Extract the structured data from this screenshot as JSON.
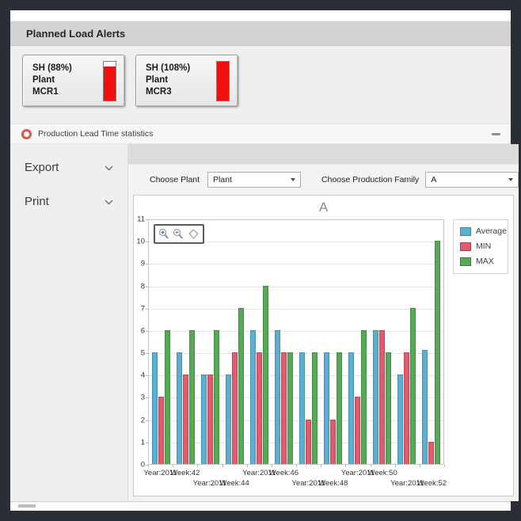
{
  "colors": {
    "frame": "#2a2e36",
    "alert_fill": "#ee1111",
    "accent_icon": "#e25649"
  },
  "alerts": {
    "header": "Planned Load Alerts",
    "tiles": [
      {
        "lines": [
          "SH (88%)",
          "Plant",
          "MCR1"
        ],
        "fill_percent": 88
      },
      {
        "lines": [
          "SH (108%)",
          "Plant",
          "MCR3"
        ],
        "fill_percent": 100
      }
    ]
  },
  "stats_window": {
    "title": "Production Lead Time statistics",
    "sidebar_items": [
      {
        "label": "Export"
      },
      {
        "label": "Print"
      }
    ],
    "filters": {
      "plant_label": "Choose Plant",
      "plant_value": "Plant",
      "family_label": "Choose Production Family",
      "family_value": "A"
    },
    "toolbar_icons": [
      "zoom-in",
      "zoom-out",
      "lasso"
    ]
  },
  "chart_data": {
    "type": "bar",
    "title": "A",
    "xlabel": "",
    "ylabel": "",
    "ylim": [
      0,
      11
    ],
    "y_tick_step": 1,
    "grid": true,
    "legend_position": "right-top",
    "categories": [
      {
        "axis_label": "Year:2011",
        "row": 1
      },
      {
        "axis_label": "Week:42",
        "row": 1
      },
      {
        "axis_label": "Year:2011",
        "row": 2
      },
      {
        "axis_label": "Week:44",
        "row": 2
      },
      {
        "axis_label": "Year:2011",
        "row": 1
      },
      {
        "axis_label": "Week:46",
        "row": 1
      },
      {
        "axis_label": "Year:2011",
        "row": 2
      },
      {
        "axis_label": "Week:48",
        "row": 2
      },
      {
        "axis_label": "Year:2011",
        "row": 1
      },
      {
        "axis_label": "Week:50",
        "row": 1
      },
      {
        "axis_label": "Year:2011",
        "row": 2
      },
      {
        "axis_label": "Week:52",
        "row": 2
      }
    ],
    "series": [
      {
        "name": "Average",
        "color": "#5CAFD0",
        "border": "#4593B3",
        "values": [
          5,
          5,
          4,
          4,
          6,
          6,
          5,
          5,
          5,
          6,
          4,
          5.1
        ]
      },
      {
        "name": "MIN",
        "color": "#E25A6E",
        "border": "#C44458",
        "values": [
          3,
          4,
          4,
          5,
          5,
          5,
          2,
          2,
          3,
          6,
          5,
          1
        ]
      },
      {
        "name": "MAX",
        "color": "#57A857",
        "border": "#448F44",
        "values": [
          6,
          6,
          6,
          7,
          8,
          5,
          5,
          5,
          6,
          5,
          7,
          10
        ]
      }
    ]
  }
}
